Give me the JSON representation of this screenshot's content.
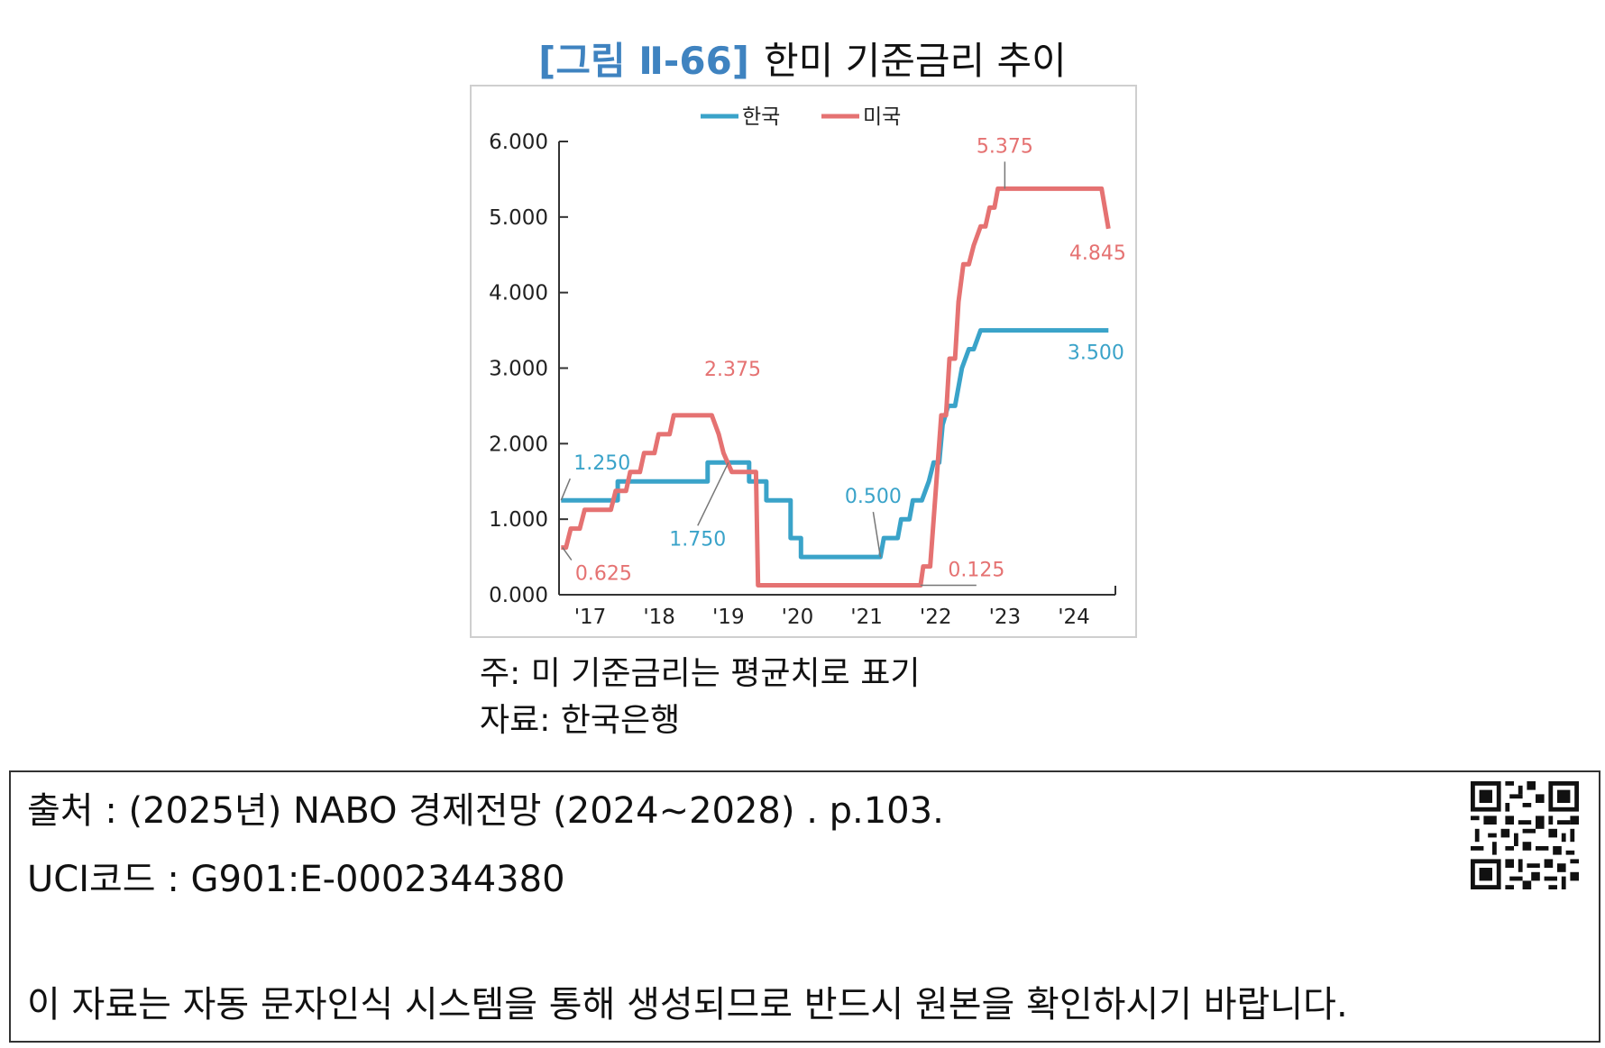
{
  "figure": {
    "number": "[그림 Ⅱ-66]",
    "title": "한미 기준금리 추이",
    "note": "주: 미 기준금리는 평균치로 표기",
    "source": "자료: 한국은행"
  },
  "footer": {
    "citation": "출처 : (2025년) NABO 경제전망 (2024~2028) . p.103.",
    "uci": "UCI코드 : G901:E-0002344380",
    "disclaimer": "이 자료는 자동 문자인식 시스템을 통해 생성되므로 반드시 원본을 확인하시기 바랍니다.",
    "qr_icon": "qr-code-icon"
  },
  "chart_data": {
    "type": "line",
    "title": "한미 기준금리 추이",
    "xlabel": "",
    "ylabel": "",
    "xlim": [
      2016.55,
      2024.6
    ],
    "ylim": [
      0,
      6
    ],
    "grid": false,
    "legend_position": "top-center",
    "yticks": [
      "0.000",
      "1.000",
      "2.000",
      "3.000",
      "4.000",
      "5.000",
      "6.000"
    ],
    "xticks": [
      {
        "x": 2017,
        "label": "'17"
      },
      {
        "x": 2018,
        "label": "'18"
      },
      {
        "x": 2019,
        "label": "'19"
      },
      {
        "x": 2020,
        "label": "'20"
      },
      {
        "x": 2021,
        "label": "'21"
      },
      {
        "x": 2022,
        "label": "'22"
      },
      {
        "x": 2023,
        "label": "'23"
      },
      {
        "x": 2024,
        "label": "'24"
      }
    ],
    "series": [
      {
        "name": "한국",
        "color": "#3aa3c9",
        "points": [
          [
            2016.58,
            1.25
          ],
          [
            2017.4,
            1.25
          ],
          [
            2017.4,
            1.5
          ],
          [
            2018.7,
            1.5
          ],
          [
            2018.7,
            1.75
          ],
          [
            2019.3,
            1.75
          ],
          [
            2019.3,
            1.5
          ],
          [
            2019.55,
            1.5
          ],
          [
            2019.55,
            1.25
          ],
          [
            2019.9,
            1.25
          ],
          [
            2019.9,
            0.75
          ],
          [
            2020.05,
            0.75
          ],
          [
            2020.05,
            0.5
          ],
          [
            2021.2,
            0.5
          ],
          [
            2021.25,
            0.75
          ],
          [
            2021.45,
            0.75
          ],
          [
            2021.5,
            1.0
          ],
          [
            2021.62,
            1.0
          ],
          [
            2021.67,
            1.25
          ],
          [
            2021.8,
            1.25
          ],
          [
            2021.9,
            1.5
          ],
          [
            2021.97,
            1.75
          ],
          [
            2022.05,
            1.75
          ],
          [
            2022.1,
            2.25
          ],
          [
            2022.18,
            2.5
          ],
          [
            2022.28,
            2.5
          ],
          [
            2022.38,
            3.0
          ],
          [
            2022.48,
            3.25
          ],
          [
            2022.55,
            3.25
          ],
          [
            2022.65,
            3.5
          ],
          [
            2024.5,
            3.5
          ]
        ]
      },
      {
        "name": "미국",
        "color": "#e57272",
        "points": [
          [
            2016.58,
            0.625
          ],
          [
            2016.65,
            0.625
          ],
          [
            2016.72,
            0.875
          ],
          [
            2016.85,
            0.875
          ],
          [
            2016.92,
            1.125
          ],
          [
            2017.3,
            1.125
          ],
          [
            2017.37,
            1.375
          ],
          [
            2017.52,
            1.375
          ],
          [
            2017.58,
            1.625
          ],
          [
            2017.72,
            1.625
          ],
          [
            2017.78,
            1.875
          ],
          [
            2017.93,
            1.875
          ],
          [
            2017.99,
            2.125
          ],
          [
            2018.15,
            2.125
          ],
          [
            2018.21,
            2.375
          ],
          [
            2018.76,
            2.375
          ],
          [
            2018.86,
            2.125
          ],
          [
            2018.93,
            1.875
          ],
          [
            2019.05,
            1.625
          ],
          [
            2019.4,
            1.625
          ],
          [
            2019.43,
            0.125
          ],
          [
            2021.78,
            0.125
          ],
          [
            2021.82,
            0.375
          ],
          [
            2021.92,
            0.375
          ],
          [
            2021.96,
            0.875
          ],
          [
            2022.02,
            1.625
          ],
          [
            2022.08,
            2.375
          ],
          [
            2022.15,
            2.375
          ],
          [
            2022.2,
            3.125
          ],
          [
            2022.28,
            3.125
          ],
          [
            2022.33,
            3.875
          ],
          [
            2022.4,
            4.375
          ],
          [
            2022.48,
            4.375
          ],
          [
            2022.55,
            4.625
          ],
          [
            2022.65,
            4.875
          ],
          [
            2022.72,
            4.875
          ],
          [
            2022.78,
            5.125
          ],
          [
            2022.85,
            5.125
          ],
          [
            2022.9,
            5.375
          ],
          [
            2024.4,
            5.375
          ],
          [
            2024.5,
            4.845
          ]
        ]
      }
    ],
    "annotations": [
      {
        "series": "한국",
        "text": "1.250",
        "x": 2016.58,
        "y": 1.25
      },
      {
        "series": "한국",
        "text": "1.750",
        "x": 2019.0,
        "y": 1.75
      },
      {
        "series": "한국",
        "text": "0.500",
        "x": 2021.2,
        "y": 0.5
      },
      {
        "series": "한국",
        "text": "3.500",
        "x": 2024.5,
        "y": 3.5
      },
      {
        "series": "미국",
        "text": "0.625",
        "x": 2016.6,
        "y": 0.625
      },
      {
        "series": "미국",
        "text": "2.375",
        "x": 2018.8,
        "y": 2.375
      },
      {
        "series": "미국",
        "text": "0.125",
        "x": 2021.78,
        "y": 0.125
      },
      {
        "series": "미국",
        "text": "5.375",
        "x": 2023.0,
        "y": 5.375
      },
      {
        "series": "미국",
        "text": "4.845",
        "x": 2024.5,
        "y": 4.845
      }
    ]
  }
}
